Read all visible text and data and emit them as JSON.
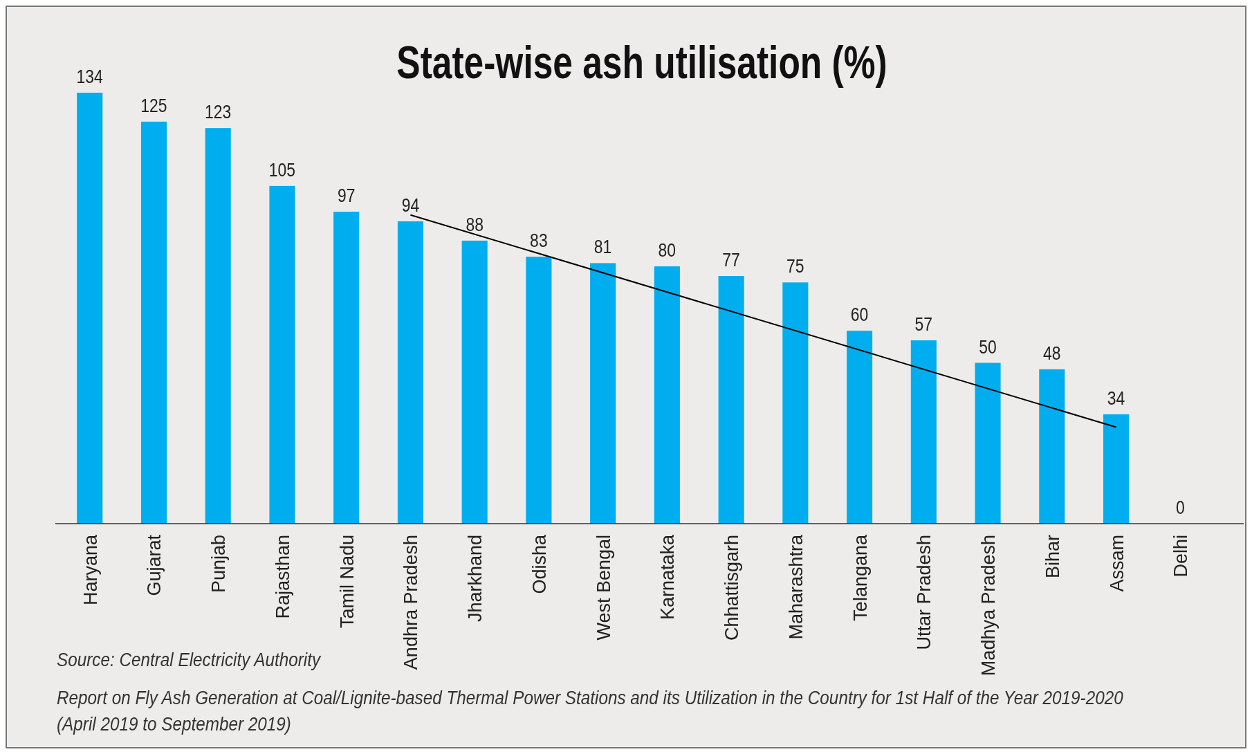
{
  "chart_data": {
    "type": "bar",
    "title": "State-wise ash utilisation (%)",
    "categories": [
      "Haryana",
      "Gujarat",
      "Punjab",
      "Rajasthan",
      "Tamil Nadu",
      "Andhra Pradesh",
      "Jharkhand",
      "Odisha",
      "West Bengal",
      "Karnataka",
      "Chhattisgarh",
      "Maharashtra",
      "Telangana",
      "Uttar Pradesh",
      "Madhya Pradesh",
      "Bihar",
      "Assam",
      "Delhi"
    ],
    "series": [
      {
        "color": "#00aeef",
        "values": [
          134,
          125,
          123,
          105,
          97,
          94,
          88,
          83,
          81,
          80,
          77,
          75,
          60,
          57,
          50,
          48,
          34,
          0
        ]
      },
      {
        "type": "line",
        "color": "#000000",
        "x": [
          "Andhra Pradesh",
          "Assam"
        ],
        "values": [
          96,
          30
        ],
        "value_labels": [
          null,
          null
        ]
      }
    ],
    "data_labels": true,
    "annotations": [
      "Source: Central Electricity Authority",
      "Report on Fly Ash Generation at Coal/Lignite-based Thermal Power Stations and its Utilization in the Country for 1st Half of the Year 2019-2020",
      "(April 2019 to September 2019)"
    ]
  }
}
